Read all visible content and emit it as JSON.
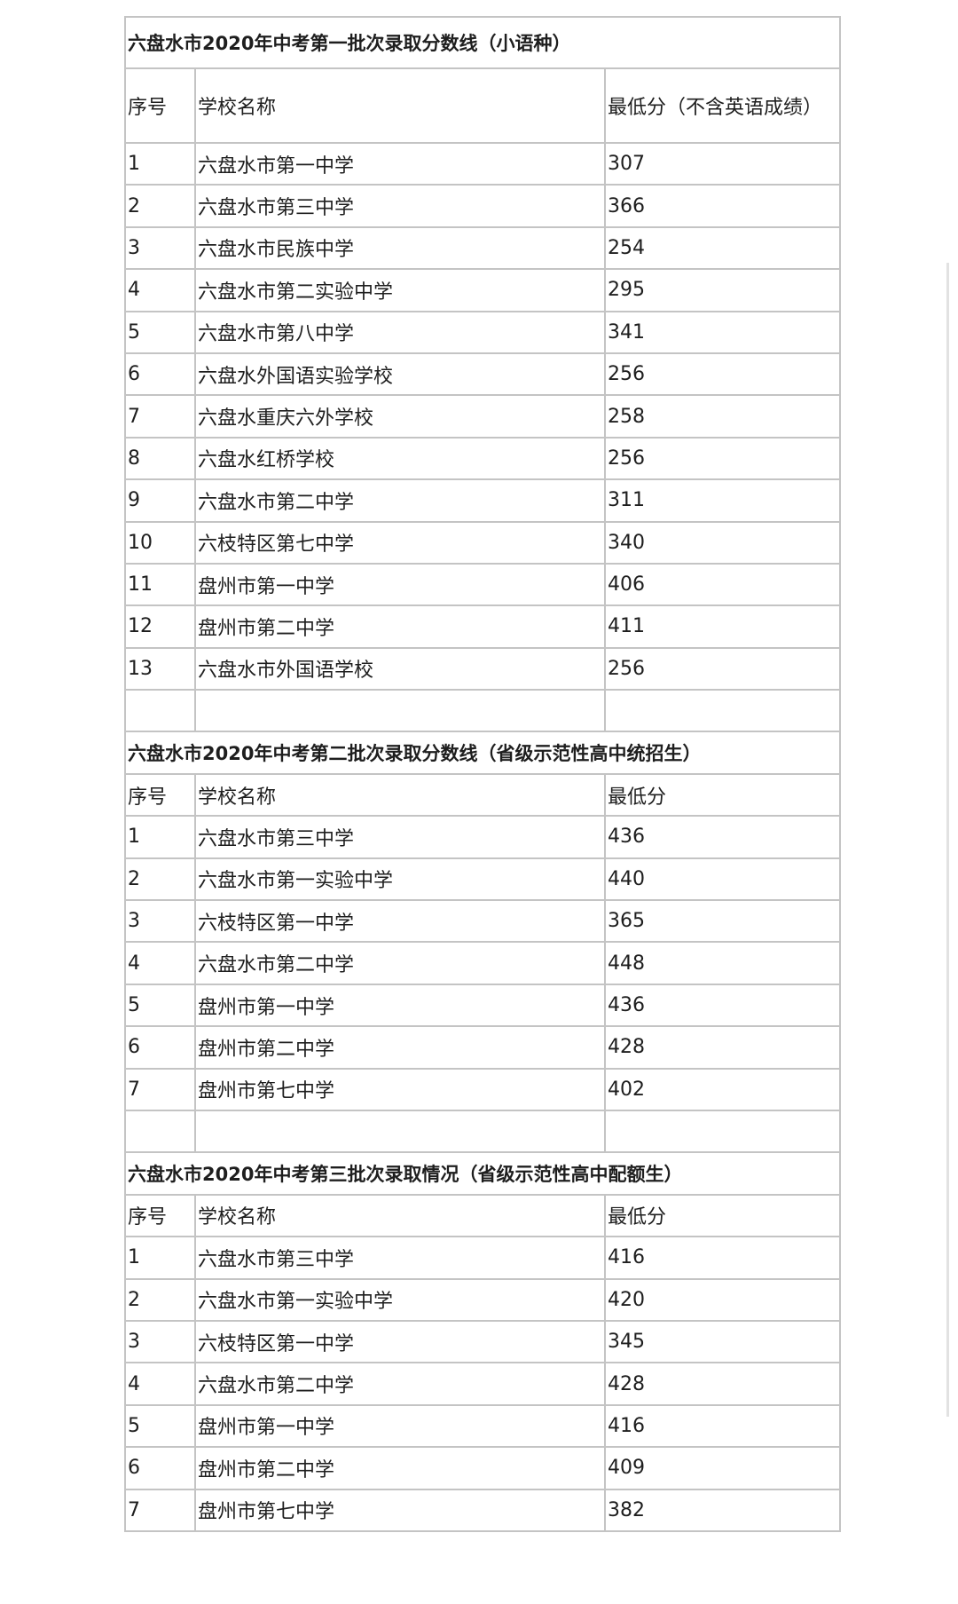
{
  "sections": [
    {
      "title": "六盘水市2020年中考第一批次录取分数线（小语种）",
      "headers": [
        "序号",
        "学校名称",
        "最低分（不含英语成绩）"
      ],
      "rows": [
        [
          "1",
          "六盘水市第一中学",
          "307"
        ],
        [
          "2",
          "六盘水市第三中学",
          "366"
        ],
        [
          "3",
          "六盘水市民族中学",
          "254"
        ],
        [
          "4",
          "六盘水市第二实验中学",
          "295"
        ],
        [
          "5",
          "六盘水市第八中学",
          "341"
        ],
        [
          "6",
          "六盘水外国语实验学校",
          "256"
        ],
        [
          "7",
          "六盘水重庆六外学校",
          "258"
        ],
        [
          "8",
          "六盘水红桥学校",
          "256"
        ],
        [
          "9",
          "六盘水市第二中学",
          "311"
        ],
        [
          "10",
          "六枝特区第七中学",
          "340"
        ],
        [
          "11",
          "盘州市第一中学",
          "406"
        ],
        [
          "12",
          "盘州市第二中学",
          "411"
        ],
        [
          "13",
          "六盘水市外国语学校",
          "256"
        ]
      ]
    },
    {
      "title": "六盘水市2020年中考第二批次录取分数线（省级示范性高中统招生）",
      "headers": [
        "序号",
        "学校名称",
        "最低分"
      ],
      "rows": [
        [
          "1",
          "六盘水市第三中学",
          "436"
        ],
        [
          "2",
          "六盘水市第一实验中学",
          "440"
        ],
        [
          "3",
          "六枝特区第一中学",
          "365"
        ],
        [
          "4",
          "六盘水市第二中学",
          "448"
        ],
        [
          "5",
          "盘州市第一中学",
          "436"
        ],
        [
          "6",
          "盘州市第二中学",
          "428"
        ],
        [
          "7",
          "盘州市第七中学",
          "402"
        ]
      ]
    },
    {
      "title": "六盘水市2020年中考第三批次录取情况（省级示范性高中配额生）",
      "headers": [
        "序号",
        "学校名称",
        "最低分"
      ],
      "rows": [
        [
          "1",
          "六盘水市第三中学",
          "416"
        ],
        [
          "2",
          "六盘水市第一实验中学",
          "420"
        ],
        [
          "3",
          "六枝特区第一中学",
          "345"
        ],
        [
          "4",
          "六盘水市第二中学",
          "428"
        ],
        [
          "5",
          "盘州市第一中学",
          "416"
        ],
        [
          "6",
          "盘州市第二中学",
          "409"
        ],
        [
          "7",
          "盘州市第七中学",
          "382"
        ]
      ]
    }
  ]
}
